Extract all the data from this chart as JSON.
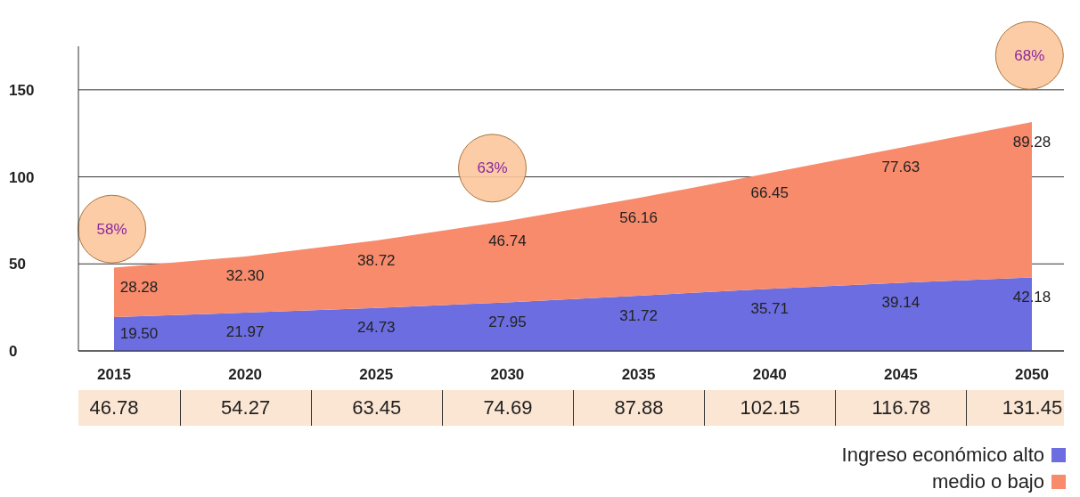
{
  "chart_data": {
    "type": "area",
    "stacked": true,
    "categories": [
      "2015",
      "2020",
      "2025",
      "2030",
      "2035",
      "2040",
      "2045",
      "2050"
    ],
    "series": [
      {
        "name": "Ingreso económico alto",
        "color": "#6b6de0",
        "values": [
          19.5,
          21.97,
          24.73,
          27.95,
          31.72,
          35.71,
          39.14,
          42.18
        ],
        "value_labels": [
          "19.50",
          "21.97",
          "24.73",
          "27.95",
          "31.72",
          "35.71",
          "39.14",
          "42.18"
        ]
      },
      {
        "name": "medio o bajo",
        "color": "#f78b6c",
        "values": [
          28.28,
          32.3,
          38.72,
          46.74,
          56.16,
          66.45,
          77.63,
          89.28
        ],
        "value_labels": [
          "28.28",
          "32.30",
          "38.72",
          "46.74",
          "56.16",
          "66.45",
          "77.63",
          "89.28"
        ]
      }
    ],
    "ylim": [
      0,
      175
    ],
    "yticks": [
      0,
      50,
      100,
      150
    ],
    "grid": "y",
    "legend": "bottom right",
    "annotations": [
      "58%",
      "63%",
      "68%",
      "46.78",
      "54.27",
      "63.45",
      "74.69",
      "87.88",
      "102.15",
      "116.78",
      "131.45"
    ]
  }
}
